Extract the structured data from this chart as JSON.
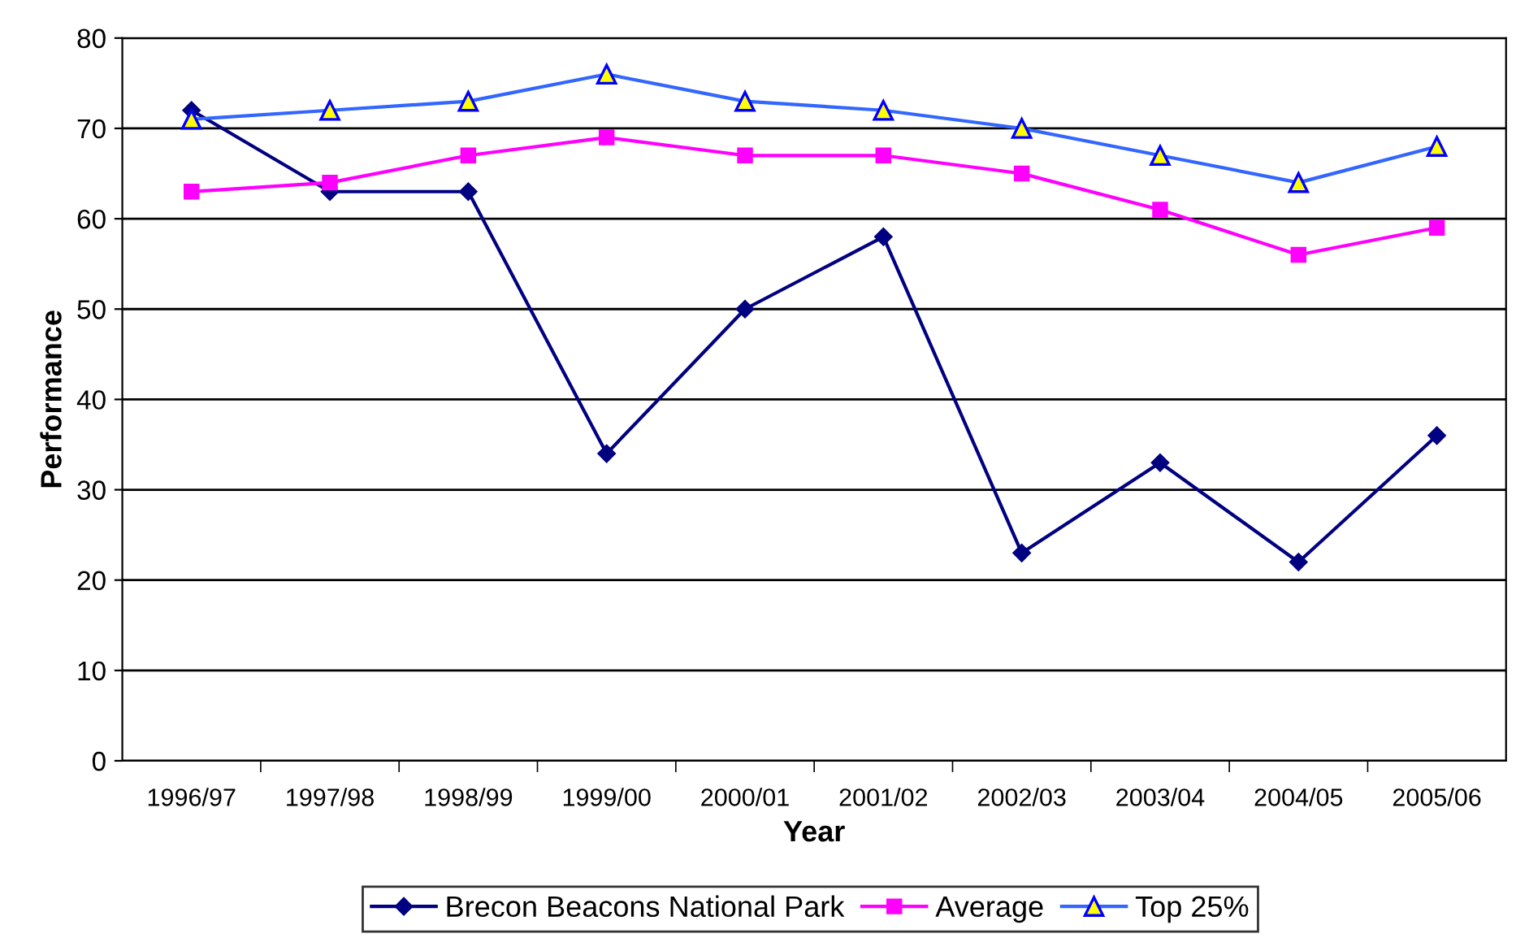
{
  "chart_data": {
    "type": "line",
    "xlabel": "Year",
    "ylabel": "Performance",
    "categories": [
      "1996/97",
      "1997/98",
      "1998/99",
      "1999/00",
      "2000/01",
      "2001/02",
      "2002/03",
      "2003/04",
      "2004/05",
      "2005/06"
    ],
    "series": [
      {
        "name": "Brecon Beacons National Park",
        "color": "#000080",
        "marker": "diamond",
        "values": [
          72,
          63,
          63,
          34,
          50,
          58,
          23,
          33,
          22,
          36
        ]
      },
      {
        "name": "Average",
        "color": "#ff00ff",
        "marker": "square",
        "values": [
          63,
          64,
          67,
          69,
          67,
          67,
          65,
          61,
          56,
          59
        ]
      },
      {
        "name": "Top 25%",
        "color": "#3366ff",
        "marker": "triangle",
        "values": [
          71,
          72,
          73,
          76,
          73,
          72,
          70,
          67,
          64,
          68
        ]
      }
    ],
    "ylim": [
      0,
      80
    ],
    "yticks": [
      0,
      10,
      20,
      30,
      40,
      50,
      60,
      70,
      80
    ],
    "grid": "y",
    "legend": "bottom"
  }
}
